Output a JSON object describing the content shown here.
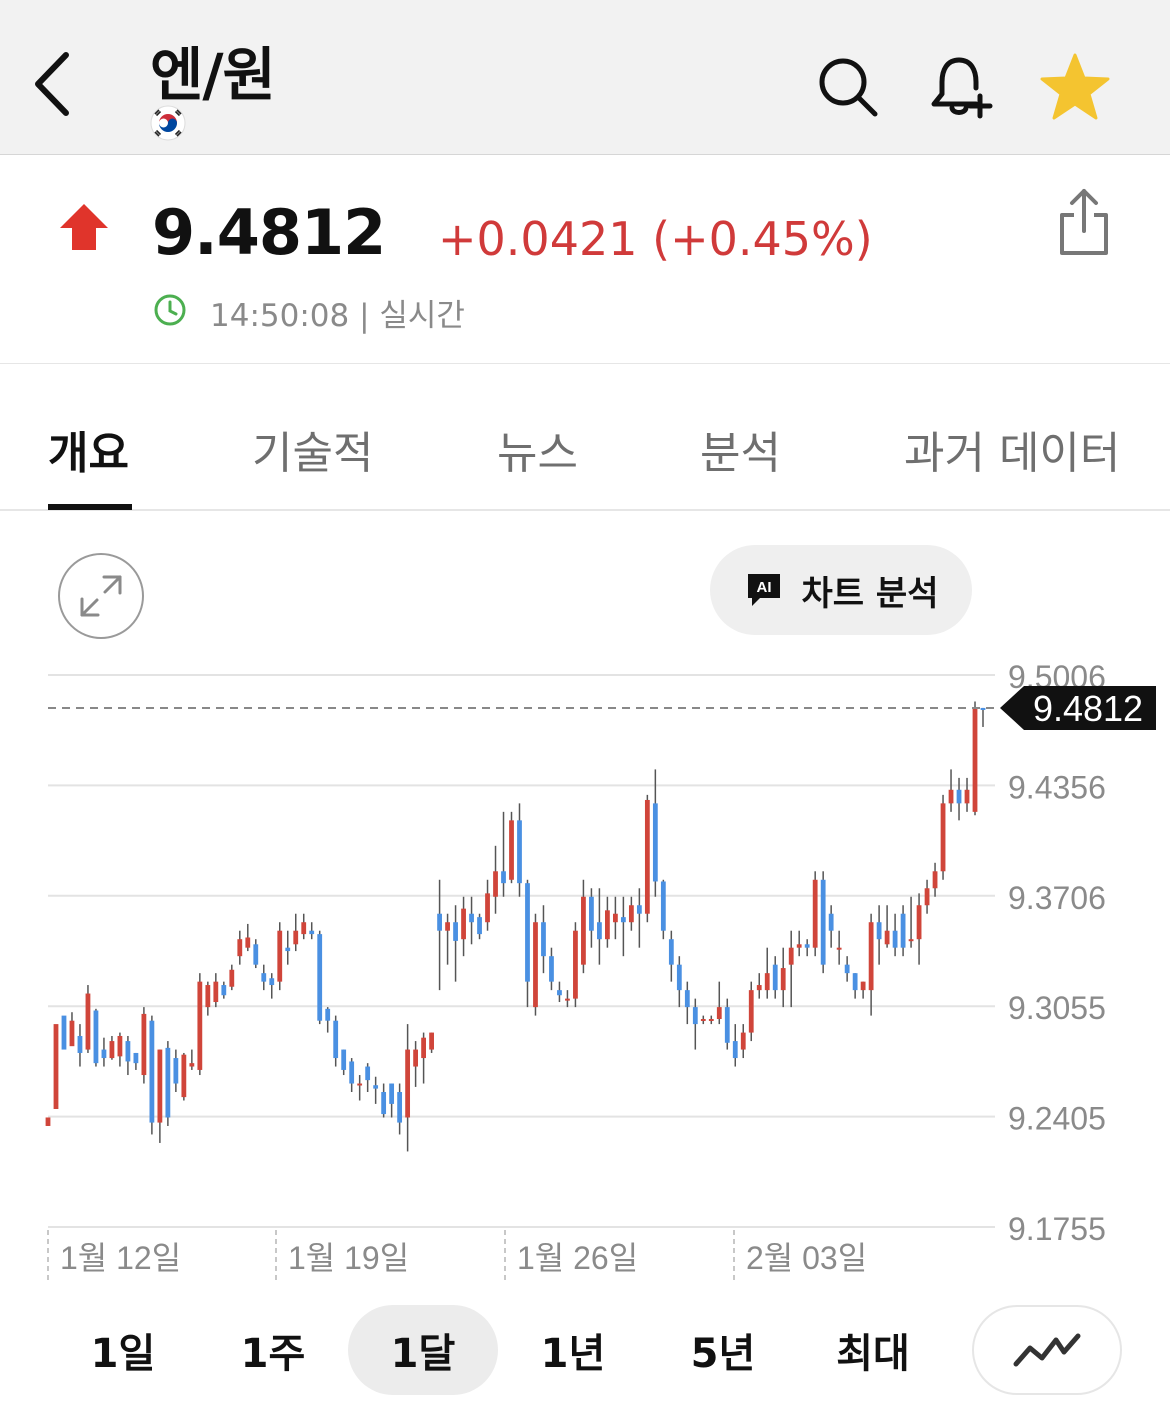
{
  "header": {
    "title": "엔/원",
    "icons": {
      "back": "chevron-left-icon",
      "search": "search-icon",
      "alert": "bell-plus-icon",
      "favorite": "star-icon"
    },
    "favorite_color": "#f4c430"
  },
  "quote": {
    "price": "9.4812",
    "change": "+0.0421 (+0.45%)",
    "time": "14:50:08 | 실시간",
    "direction": "up",
    "up_color": "#e0342b",
    "change_color": "#d03a3a",
    "clock_color": "#4caf50"
  },
  "tabs": [
    {
      "label": "개요",
      "active": true
    },
    {
      "label": "기술적",
      "active": false
    },
    {
      "label": "뉴스",
      "active": false
    },
    {
      "label": "분석",
      "active": false
    },
    {
      "label": "과거 데이터",
      "active": false
    }
  ],
  "chart_toolbar": {
    "ai_badge": "AI",
    "ai_label": "차트 분석"
  },
  "chart_data": {
    "type": "candlestick",
    "current_value": 9.4812,
    "current_label": "9.4812",
    "y_ticks": [
      "9.5006",
      "9.4356",
      "9.3706",
      "9.3055",
      "9.2405",
      "9.1755"
    ],
    "ylim": [
      9.1755,
      9.5006
    ],
    "x_labels": [
      "1월 12일",
      "1월 19일",
      "1월 26일",
      "2월 03일"
    ],
    "up_color": "#d0453a",
    "down_color": "#4a90e2",
    "grid": true,
    "candles": [
      [
        9.235,
        9.24,
        9.239,
        9.235
      ],
      [
        9.245,
        9.295,
        9.285,
        9.25
      ],
      [
        9.3,
        9.28,
        9.292,
        9.282
      ],
      [
        9.282,
        9.297,
        9.295,
        9.302
      ],
      [
        9.288,
        9.278,
        9.295,
        9.27
      ],
      [
        9.28,
        9.313,
        9.318,
        9.278
      ],
      [
        9.303,
        9.272,
        9.304,
        9.27
      ],
      [
        9.28,
        9.275,
        9.287,
        9.27
      ],
      [
        9.275,
        9.285,
        9.288,
        9.274
      ],
      [
        9.276,
        9.288,
        9.29,
        9.27
      ],
      [
        9.285,
        9.273,
        9.288,
        9.265
      ],
      [
        9.278,
        9.272,
        9.278,
        9.268
      ],
      [
        9.265,
        9.301,
        9.305,
        9.26
      ],
      [
        9.297,
        9.237,
        9.3,
        9.23
      ],
      [
        9.237,
        9.28,
        9.28,
        9.225
      ],
      [
        9.281,
        9.24,
        9.285,
        9.235
      ],
      [
        9.275,
        9.26,
        9.28,
        9.255
      ],
      [
        9.252,
        9.277,
        9.278,
        9.25
      ],
      [
        9.27,
        9.272,
        9.28,
        9.268
      ],
      [
        9.268,
        9.32,
        9.325,
        9.265
      ],
      [
        9.305,
        9.318,
        9.32,
        9.3
      ],
      [
        9.308,
        9.32,
        9.325,
        9.305
      ],
      [
        9.318,
        9.312,
        9.32,
        9.31
      ],
      [
        9.317,
        9.327,
        9.33,
        9.315
      ],
      [
        9.335,
        9.345,
        9.35,
        9.33
      ],
      [
        9.34,
        9.346,
        9.354,
        9.338
      ],
      [
        9.342,
        9.33,
        9.345,
        9.328
      ],
      [
        9.325,
        9.32,
        9.33,
        9.315
      ],
      [
        9.322,
        9.318,
        9.325,
        9.31
      ],
      [
        9.32,
        9.35,
        9.355,
        9.315
      ],
      [
        9.34,
        9.338,
        9.35,
        9.33
      ],
      [
        9.342,
        9.35,
        9.36,
        9.338
      ],
      [
        9.348,
        9.355,
        9.36,
        9.345
      ],
      [
        9.35,
        9.348,
        9.355,
        9.345
      ],
      [
        9.348,
        9.297,
        9.35,
        9.295
      ],
      [
        9.304,
        9.297,
        9.305,
        9.29
      ],
      [
        9.297,
        9.275,
        9.3,
        9.27
      ],
      [
        9.28,
        9.268,
        9.28,
        9.265
      ],
      [
        9.273,
        9.26,
        9.275,
        9.255
      ],
      [
        9.26,
        9.26,
        9.265,
        9.25
      ],
      [
        9.27,
        9.262,
        9.272,
        9.255
      ],
      [
        9.259,
        9.257,
        9.264,
        9.248
      ],
      [
        9.255,
        9.242,
        9.26,
        9.24
      ],
      [
        9.26,
        9.248,
        9.26,
        9.24
      ],
      [
        9.255,
        9.237,
        9.26,
        9.23
      ],
      [
        9.24,
        9.28,
        9.295,
        9.22
      ],
      [
        9.27,
        9.28,
        9.285,
        9.258
      ],
      [
        9.275,
        9.287,
        9.29,
        9.26
      ],
      [
        9.28,
        9.29,
        9.29,
        9.278
      ],
      [
        9.36,
        9.35,
        9.38,
        9.315
      ],
      [
        9.35,
        9.355,
        9.36,
        9.33
      ],
      [
        9.355,
        9.344,
        9.365,
        9.32
      ],
      [
        9.345,
        9.363,
        9.37,
        9.335
      ],
      [
        9.36,
        9.355,
        9.37,
        9.342
      ],
      [
        9.358,
        9.348,
        9.36,
        9.345
      ],
      [
        9.355,
        9.372,
        9.38,
        9.35
      ],
      [
        9.37,
        9.385,
        9.4,
        9.36
      ],
      [
        9.385,
        9.378,
        9.42,
        9.37
      ],
      [
        9.38,
        9.415,
        9.42,
        9.378
      ],
      [
        9.415,
        9.378,
        9.425,
        9.37
      ],
      [
        9.378,
        9.32,
        9.38,
        9.305
      ],
      [
        9.305,
        9.355,
        9.36,
        9.3
      ],
      [
        9.355,
        9.335,
        9.365,
        9.325
      ],
      [
        9.335,
        9.32,
        9.34,
        9.315
      ],
      [
        9.315,
        9.312,
        9.32,
        9.308
      ],
      [
        9.31,
        9.31,
        9.315,
        9.305
      ],
      [
        9.31,
        9.35,
        9.355,
        9.305
      ],
      [
        9.33,
        9.37,
        9.38,
        9.325
      ],
      [
        9.37,
        9.35,
        9.375,
        9.34
      ],
      [
        9.355,
        9.345,
        9.375,
        9.33
      ],
      [
        9.345,
        9.362,
        9.37,
        9.34
      ],
      [
        9.355,
        9.36,
        9.37,
        9.345
      ],
      [
        9.358,
        9.355,
        9.37,
        9.335
      ],
      [
        9.355,
        9.365,
        9.37,
        9.35
      ],
      [
        9.365,
        9.36,
        9.375,
        9.34
      ],
      [
        9.36,
        9.427,
        9.43,
        9.355
      ],
      [
        9.425,
        9.379,
        9.445,
        9.37
      ],
      [
        9.379,
        9.35,
        9.38,
        9.345
      ],
      [
        9.345,
        9.33,
        9.35,
        9.32
      ],
      [
        9.33,
        9.315,
        9.335,
        9.305
      ],
      [
        9.315,
        9.305,
        9.32,
        9.295
      ],
      [
        9.305,
        9.295,
        9.31,
        9.28
      ],
      [
        9.298,
        9.298,
        9.3,
        9.295
      ],
      [
        9.298,
        9.298,
        9.3,
        9.295
      ],
      [
        9.298,
        9.305,
        9.32,
        9.295
      ],
      [
        9.305,
        9.284,
        9.31,
        9.28
      ],
      [
        9.285,
        9.275,
        9.295,
        9.27
      ],
      [
        9.28,
        9.29,
        9.295,
        9.275
      ],
      [
        9.29,
        9.315,
        9.32,
        9.285
      ],
      [
        9.315,
        9.318,
        9.325,
        9.31
      ],
      [
        9.315,
        9.325,
        9.34,
        9.31
      ],
      [
        9.33,
        9.315,
        9.335,
        9.31
      ],
      [
        9.315,
        9.328,
        9.34,
        9.305
      ],
      [
        9.33,
        9.34,
        9.35,
        9.305
      ],
      [
        9.34,
        9.342,
        9.35,
        9.335
      ],
      [
        9.342,
        9.34,
        9.345,
        9.335
      ],
      [
        9.34,
        9.38,
        9.385,
        9.335
      ],
      [
        9.38,
        9.33,
        9.385,
        9.325
      ],
      [
        9.36,
        9.35,
        9.365,
        9.34
      ],
      [
        9.34,
        9.34,
        9.35,
        9.33
      ],
      [
        9.33,
        9.325,
        9.335,
        9.32
      ],
      [
        9.325,
        9.315,
        9.325,
        9.31
      ],
      [
        9.315,
        9.32,
        9.32,
        9.31
      ],
      [
        9.315,
        9.355,
        9.36,
        9.3
      ],
      [
        9.355,
        9.345,
        9.365,
        9.33
      ],
      [
        9.342,
        9.35,
        9.365,
        9.34
      ],
      [
        9.35,
        9.34,
        9.36,
        9.335
      ],
      [
        9.36,
        9.34,
        9.365,
        9.335
      ],
      [
        9.345,
        9.345,
        9.37,
        9.34
      ],
      [
        9.345,
        9.365,
        9.372,
        9.33
      ],
      [
        9.365,
        9.375,
        9.38,
        9.36
      ],
      [
        9.375,
        9.385,
        9.39,
        9.37
      ],
      [
        9.385,
        9.425,
        9.43,
        9.38
      ],
      [
        9.425,
        9.433,
        9.445,
        9.42
      ],
      [
        9.433,
        9.425,
        9.44,
        9.415
      ],
      [
        9.425,
        9.433,
        9.44,
        9.42
      ],
      [
        9.42,
        9.4812,
        9.485,
        9.418
      ],
      [
        9.4812,
        9.48,
        9.4812,
        9.47
      ]
    ]
  },
  "ranges": [
    {
      "label": "1일",
      "active": false
    },
    {
      "label": "1주",
      "active": false
    },
    {
      "label": "1달",
      "active": true
    },
    {
      "label": "1년",
      "active": false
    },
    {
      "label": "5년",
      "active": false
    },
    {
      "label": "최대",
      "active": false
    }
  ],
  "line_toggle_icon": "line-chart-icon"
}
